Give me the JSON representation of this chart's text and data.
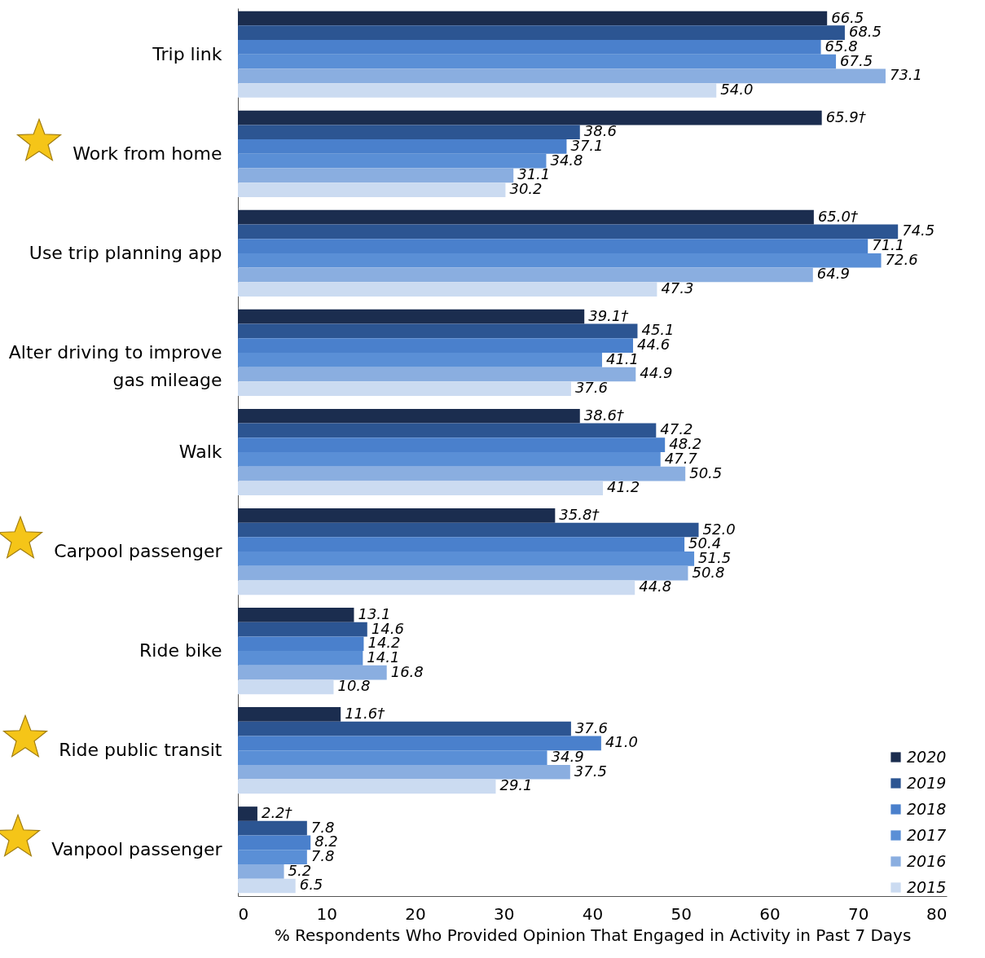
{
  "chart_data": {
    "type": "bar",
    "orientation": "horizontal",
    "xlabel": "% Respondents Who Provided Opinion That Engaged in Activity in Past 7 Days",
    "categories": [
      "Trip link",
      "Work from home",
      "Use trip planning app",
      "Alter driving to improve gas mileage",
      "Walk",
      "Carpool passenger",
      "Ride bike",
      "Ride public transit",
      "Vanpool passenger"
    ],
    "series": [
      {
        "name": "2020",
        "color": "#1b2d4f",
        "values": [
          66.5,
          65.9,
          65.0,
          39.1,
          38.6,
          35.8,
          13.1,
          11.6,
          2.2
        ],
        "value_labels": [
          "66.5",
          "65.9†",
          "65.0†",
          "39.1†",
          "38.6†",
          "35.8†",
          "13.1",
          "11.6†",
          "2.2†"
        ]
      },
      {
        "name": "2019",
        "color": "#2c5592",
        "values": [
          68.5,
          38.6,
          74.5,
          45.1,
          47.2,
          52.0,
          14.6,
          37.6,
          7.8
        ],
        "value_labels": [
          "68.5",
          "38.6",
          "74.5",
          "45.1",
          "47.2",
          "52.0",
          "14.6",
          "37.6",
          "7.8"
        ]
      },
      {
        "name": "2018",
        "color": "#4a80cc",
        "values": [
          65.8,
          37.1,
          71.1,
          44.6,
          48.2,
          50.4,
          14.2,
          41.0,
          8.2
        ],
        "value_labels": [
          "65.8",
          "37.1",
          "71.1",
          "44.6",
          "48.2",
          "50.4",
          "14.2",
          "41.0",
          "8.2"
        ]
      },
      {
        "name": "2017",
        "color": "#5a8fd6",
        "values": [
          67.5,
          34.8,
          72.6,
          41.1,
          47.7,
          51.5,
          14.1,
          34.9,
          7.8
        ],
        "value_labels": [
          "67.5",
          "34.8",
          "72.6",
          "41.1",
          "47.7",
          "51.5",
          "14.1",
          "34.9",
          "7.8"
        ]
      },
      {
        "name": "2016",
        "color": "#8aaee0",
        "values": [
          73.1,
          31.1,
          64.9,
          44.9,
          50.5,
          50.8,
          16.8,
          37.5,
          5.2
        ],
        "value_labels": [
          "73.1",
          "31.1",
          "64.9",
          "44.9",
          "50.5",
          "50.8",
          "16.8",
          "37.5",
          "5.2"
        ]
      },
      {
        "name": "2015",
        "color": "#cbdbf1",
        "values": [
          54.0,
          30.2,
          47.3,
          37.6,
          41.2,
          44.8,
          10.8,
          29.1,
          6.5
        ],
        "value_labels": [
          "54.0",
          "30.2",
          "47.3",
          "37.6",
          "41.2",
          "44.8",
          "10.8",
          "29.1",
          "6.5"
        ]
      }
    ],
    "xlim": [
      0,
      80
    ],
    "xticks": [
      0,
      10,
      20,
      30,
      40,
      50,
      60,
      70,
      80
    ],
    "grid": false,
    "legend": "bottom right"
  }
}
